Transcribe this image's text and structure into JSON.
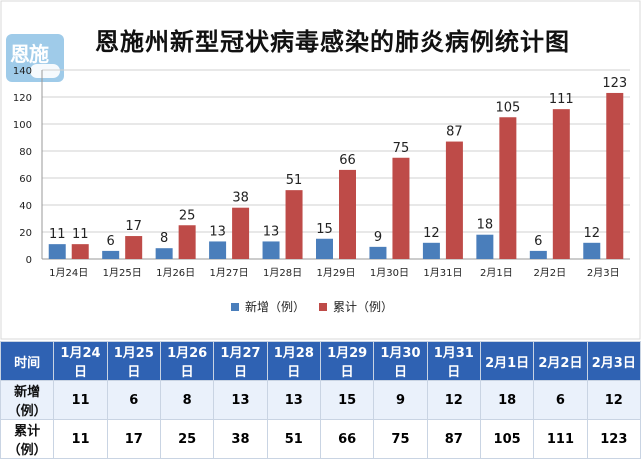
{
  "logo": {
    "text": "恩施"
  },
  "chart_data": {
    "type": "bar",
    "title": "恩施州新型冠状病毒感染的肺炎病例统计图",
    "categories": [
      "1月24日",
      "1月25日",
      "1月26日",
      "1月27日",
      "1月28日",
      "1月29日",
      "1月30日",
      "1月31日",
      "2月1日",
      "2月2日",
      "2月3日"
    ],
    "series": [
      {
        "name": "新增（例）",
        "values": [
          11,
          6,
          8,
          13,
          13,
          15,
          9,
          12,
          18,
          6,
          12
        ],
        "color": "#4a7ebb"
      },
      {
        "name": "累计（例）",
        "values": [
          11,
          17,
          25,
          38,
          51,
          66,
          75,
          87,
          105,
          111,
          123
        ],
        "color": "#be4b48"
      }
    ],
    "ylim": [
      0,
      140
    ],
    "yticks": [
      0,
      20,
      40,
      60,
      80,
      100,
      120,
      140
    ],
    "grid": true,
    "legend": "bottom"
  },
  "table": {
    "header_label": "时间",
    "dates": [
      "1月24日",
      "1月25日",
      "1月26日",
      "1月27日",
      "1月28日",
      "1月29日",
      "1月30日",
      "1月31日",
      "2月1日",
      "2月2日",
      "2月3日"
    ],
    "rows": [
      {
        "label": "新增（例）",
        "values": [
          11,
          6,
          8,
          13,
          13,
          15,
          9,
          12,
          18,
          6,
          12
        ]
      },
      {
        "label": "累计（例）",
        "values": [
          11,
          17,
          25,
          38,
          51,
          66,
          75,
          87,
          105,
          111,
          123
        ]
      }
    ],
    "header_bg": "#2f62b3"
  }
}
